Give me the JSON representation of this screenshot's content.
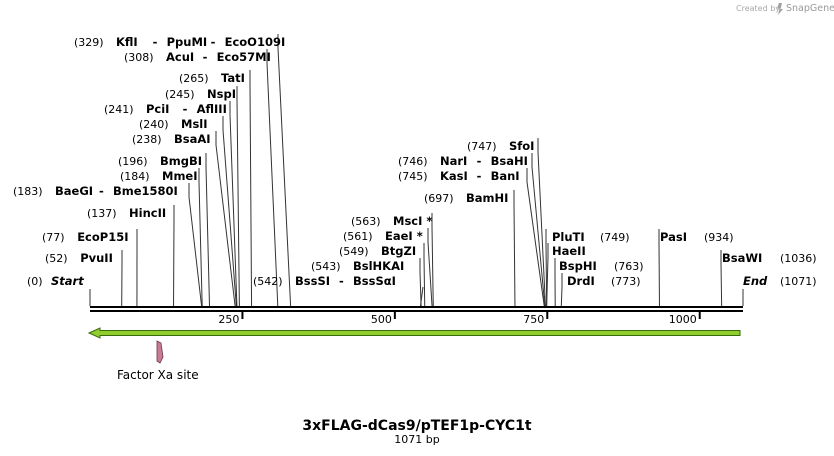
{
  "credit": {
    "created_by": "Created by",
    "brand": "SnapGene"
  },
  "plasmid": {
    "name": "3xFLAG-dCas9/pTEF1p-CYC1t",
    "length_label": "1071 bp",
    "length": 1071
  },
  "ruler": {
    "ticks": [
      250,
      500,
      750,
      1000
    ]
  },
  "colors": {
    "arrow": "#8fce2c",
    "arrow_outline": "#3a6b10",
    "feature": "#c77c94",
    "feature_outline": "#6b3a48"
  },
  "left_end": {
    "pos": "(0)",
    "name": "Start",
    "bp": 0
  },
  "right_end": {
    "pos": "(1071)",
    "name": "End",
    "bp": 1071
  },
  "sites": [
    {
      "pos": "(329)",
      "names": [
        "KflI",
        "-",
        "PpuMI",
        "-",
        "EcoO109I"
      ],
      "bp": 329
    },
    {
      "pos": "(308)",
      "names": [
        "AcuI",
        "-",
        "Eco57MI"
      ],
      "bp": 308
    },
    {
      "pos": "(265)",
      "names": [
        "TatI"
      ],
      "bp": 265
    },
    {
      "pos": "(245)",
      "names": [
        "NspI"
      ],
      "bp": 245
    },
    {
      "pos": "(241)",
      "names": [
        "PciI",
        "-",
        "AflIII"
      ],
      "bp": 241
    },
    {
      "pos": "(240)",
      "names": [
        "MslI"
      ],
      "bp": 240
    },
    {
      "pos": "(238)",
      "names": [
        "BsaAI"
      ],
      "bp": 238
    },
    {
      "pos": "(196)",
      "names": [
        "BmgBI"
      ],
      "bp": 196
    },
    {
      "pos": "(184)",
      "names": [
        "MmeI"
      ],
      "bp": 184
    },
    {
      "pos": "(183)",
      "names": [
        "BaeGI",
        "-",
        "Bme1580I"
      ],
      "bp": 183
    },
    {
      "pos": "(137)",
      "names": [
        "HincII"
      ],
      "bp": 137
    },
    {
      "pos": "(77)",
      "names": [
        "EcoP15I"
      ],
      "bp": 77
    },
    {
      "pos": "(52)",
      "names": [
        "PvuII"
      ],
      "bp": 52
    },
    {
      "pos": "(563)",
      "names": [
        "MscI *"
      ],
      "bp": 563
    },
    {
      "pos": "(561)",
      "names": [
        "EaeI *"
      ],
      "bp": 561
    },
    {
      "pos": "(549)",
      "names": [
        "BtgZI"
      ],
      "bp": 549
    },
    {
      "pos": "(543)",
      "names": [
        "BslHKAI"
      ],
      "bp": 543
    },
    {
      "pos": "(542)",
      "names": [
        "BssSI",
        "-",
        "BssSαI"
      ],
      "bp": 542
    },
    {
      "pos": "(747)",
      "names": [
        "SfoI"
      ],
      "bp": 747
    },
    {
      "pos": "(746)",
      "names": [
        "NarI",
        "-",
        "BsaHI"
      ],
      "bp": 746
    },
    {
      "pos": "(745)",
      "names": [
        "KasI",
        "-",
        "BanI"
      ],
      "bp": 745
    },
    {
      "pos": "(697)",
      "names": [
        "BamHI"
      ],
      "bp": 697
    },
    {
      "pos": "(749)",
      "names": [
        "PluTI"
      ],
      "bp": 749
    },
    {
      "pos": "",
      "names": [
        "HaeII"
      ],
      "bp": 749
    },
    {
      "pos": "(763)",
      "names": [
        "BspHI"
      ],
      "bp": 763
    },
    {
      "pos": "(773)",
      "names": [
        "DrdI"
      ],
      "bp": 773
    },
    {
      "pos": "(934)",
      "names": [
        "PasI"
      ],
      "bp": 934
    },
    {
      "pos": "(1036)",
      "names": [
        "BsaWI"
      ],
      "bp": 1036
    }
  ],
  "features": [
    {
      "name": "Factor Xa site"
    }
  ]
}
